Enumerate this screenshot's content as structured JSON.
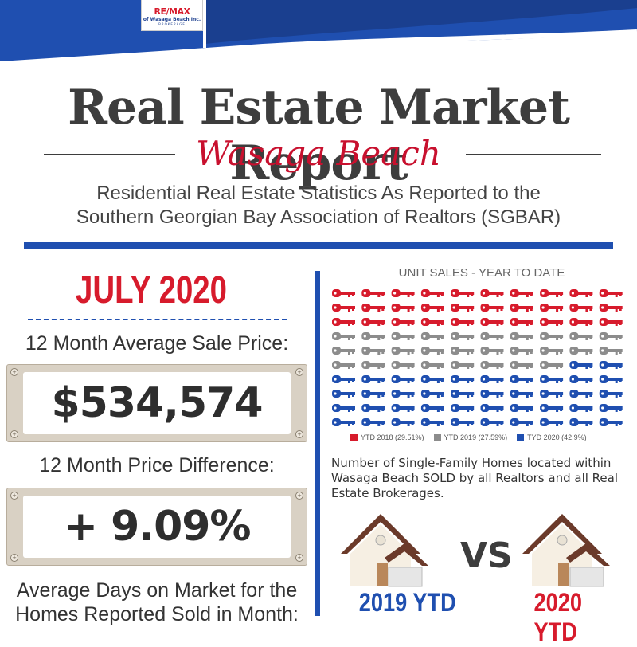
{
  "brand": {
    "logo_text": "RE/MAX",
    "logo_sub": "of Wasaga Beach Inc.",
    "logo_tag": "BROKERAGE",
    "colors": {
      "blue": "#1f4fb0",
      "red": "#d71b2c",
      "dark": "#3d3d3d"
    }
  },
  "header": {
    "title": "Real Estate Market Report",
    "subtitle": "Wasaga Beach",
    "description_line1": "Residential Real Estate Statistics As Reported to the",
    "description_line2": "Southern Georgian Bay Association of Realtors (SGBAR)"
  },
  "left": {
    "month": "JULY 2020",
    "avg_price_label": "12 Month Average Sale Price:",
    "avg_price_value": "$534,574",
    "price_diff_label": "12 Month Price Difference:",
    "price_diff_value": "+ 9.09%",
    "days_label_line1": "Average Days on Market for the",
    "days_label_line2": "Homes Reported Sold in Month:"
  },
  "right": {
    "note": "Number of Single-Family Homes located within Wasaga Beach SOLD by all Realtors and all Real Estate Brokerages.",
    "vs": "VS",
    "ytd_left": "2019 YTD",
    "ytd_right": "2020 YTD"
  },
  "chart_data": {
    "type": "pictogram",
    "title": "UNIT SALES - YEAR TO DATE",
    "icon": "key-icon",
    "columns": 10,
    "rows": 10,
    "series": [
      {
        "name": "YTD 2018 (29.51%)",
        "value": 29.51,
        "icons": 30,
        "color": "#d71b2c"
      },
      {
        "name": "YTD 2019 (27.59%)",
        "value": 27.59,
        "icons": 28,
        "color": "#8c8c8c"
      },
      {
        "name": "TYD 2020 (42.9%)",
        "value": 42.9,
        "icons": 42,
        "color": "#1f4fb0"
      }
    ],
    "legend_position": "bottom"
  }
}
